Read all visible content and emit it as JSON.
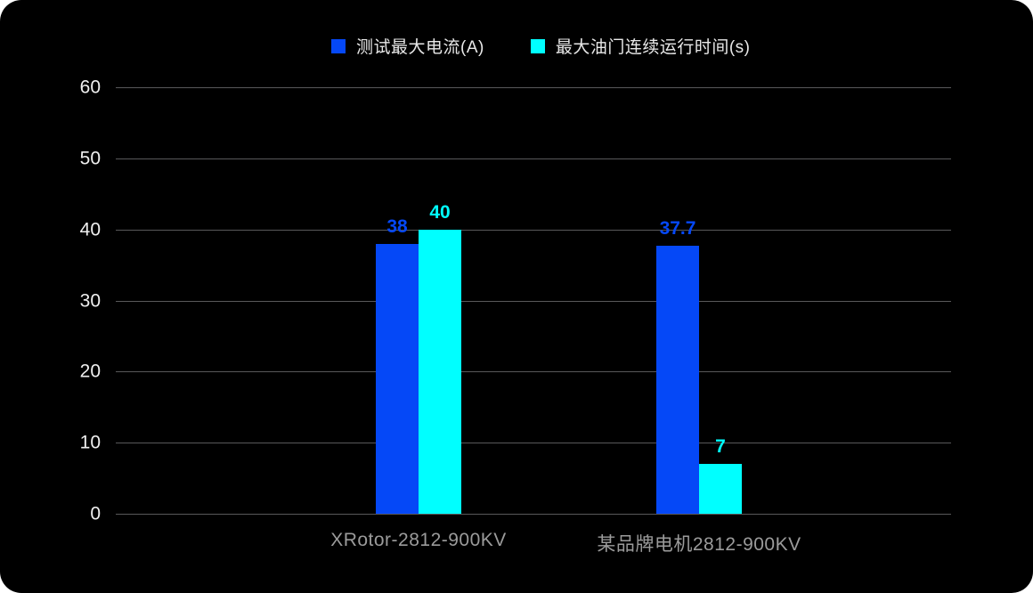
{
  "colors": {
    "card_background": "#000000",
    "page_background": "#ffffff",
    "gridline": "#58585a",
    "y_axis_label": "#efefef",
    "category_label": "#9b9b9b",
    "legend_text": "#e8e8e8",
    "series_current": "#0548f7",
    "series_runtime": "#00ffff"
  },
  "chart_data": {
    "type": "bar",
    "title": "",
    "categories": [
      "XRotor-2812-900KV",
      "某品牌电机2812-900KV"
    ],
    "series": [
      {
        "name": "测试最大电流(A)",
        "color": "#0548f7",
        "values": [
          38,
          37.7
        ]
      },
      {
        "name": "最大油门连续运行时间(s)",
        "color": "#00ffff",
        "values": [
          40,
          7
        ]
      }
    ],
    "ylim": [
      0,
      60
    ],
    "yticks": [
      0,
      10,
      20,
      30,
      40,
      50,
      60
    ],
    "grid": true,
    "legend_position": "top",
    "value_labels": true,
    "background": "#000000"
  }
}
